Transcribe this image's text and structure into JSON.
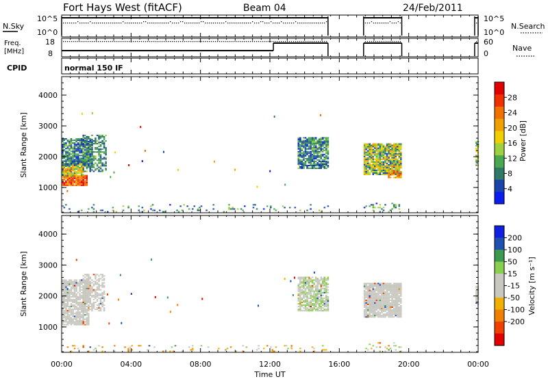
{
  "header": {
    "title": "Fort Hays West (fitACF)",
    "beam": "Beam 04",
    "date": "24/Feb/2011"
  },
  "time_axis": {
    "ticks": [
      "00:00",
      "04:00",
      "08:00",
      "12:00",
      "16:00",
      "20:00",
      "00:00"
    ],
    "tick_hours": [
      0,
      4,
      8,
      12,
      16,
      20,
      24
    ],
    "label": "Time UT",
    "range_hours": [
      0,
      24
    ]
  },
  "noise_panel": {
    "left_label": "N.Sky",
    "left_ticks": [
      "10^5",
      "10^0"
    ],
    "right_ticks": [
      "10^5",
      "10^0"
    ],
    "right_label": "N.Search"
  },
  "freq_panel": {
    "left_label_1": "Freq.",
    "left_label_2": "[MHz]",
    "left_ticks": [
      "18",
      "8"
    ],
    "right_ticks": [
      "60",
      "0"
    ],
    "right_label": "Nave"
  },
  "cpid": {
    "label": "CPID",
    "program": "normal 150 IF"
  },
  "chart_data": [
    {
      "type": "heatmap",
      "panel": "power",
      "ylabel": "Slant Range [km]",
      "yticks": [
        "1000",
        "2000",
        "3000",
        "4000"
      ],
      "ytick_values": [
        1000,
        2000,
        3000,
        4000
      ],
      "ylim": [
        180,
        4600
      ],
      "colorbar_label": "Power [dB]",
      "colorbar_ticks": [
        "4",
        "8",
        "12",
        "16",
        "20",
        "24",
        "28"
      ],
      "colorbar_tick_values": [
        4,
        8,
        12,
        16,
        20,
        24,
        28
      ],
      "colorbar_range": [
        0,
        32
      ],
      "colors": [
        "#0a1cf0",
        "#1a44aa",
        "#2f7a66",
        "#4aa850",
        "#9fd040",
        "#f0d000",
        "#f0a000",
        "#f07000",
        "#f03000",
        "#e00000"
      ],
      "clusters": [
        {
          "t": [
            0.0,
            1.5
          ],
          "r": [
            1050,
            1400
          ],
          "lvl": [
            20,
            32
          ],
          "density": 0.95
        },
        {
          "t": [
            0.0,
            1.3
          ],
          "r": [
            1350,
            1800
          ],
          "lvl": [
            8,
            24
          ],
          "density": 0.9
        },
        {
          "t": [
            0.0,
            1.8
          ],
          "r": [
            1700,
            2600
          ],
          "lvl": [
            2,
            14
          ],
          "density": 0.8
        },
        {
          "t": [
            1.2,
            2.6
          ],
          "r": [
            1500,
            2700
          ],
          "lvl": [
            4,
            14
          ],
          "density": 0.55
        },
        {
          "t": [
            13.6,
            15.3
          ],
          "r": [
            1600,
            2600
          ],
          "lvl": [
            2,
            14
          ],
          "density": 0.8
        },
        {
          "t": [
            17.4,
            19.6
          ],
          "r": [
            1400,
            2400
          ],
          "lvl": [
            4,
            22
          ],
          "density": 0.9
        },
        {
          "t": [
            18.8,
            19.6
          ],
          "r": [
            1300,
            1700
          ],
          "lvl": [
            14,
            26
          ],
          "density": 0.8
        },
        {
          "t": [
            23.85,
            24.0
          ],
          "r": [
            1700,
            2500
          ],
          "lvl": [
            8,
            20
          ],
          "density": 0.6
        },
        {
          "t": [
            0.0,
            15.3
          ],
          "r": [
            190,
            420
          ],
          "lvl": [
            2,
            16
          ],
          "density": 0.08
        },
        {
          "t": [
            17.4,
            19.6
          ],
          "r": [
            190,
            500
          ],
          "lvl": [
            2,
            16
          ],
          "density": 0.15
        }
      ]
    },
    {
      "type": "heatmap",
      "panel": "velocity",
      "ylabel": "Slant Range [km]",
      "yticks": [
        "1000",
        "2000",
        "3000",
        "4000"
      ],
      "ytick_values": [
        1000,
        2000,
        3000,
        4000
      ],
      "ylim": [
        180,
        4600
      ],
      "colorbar_label": "Velocity [m s^-1]",
      "colorbar_ticks": [
        "200",
        "100",
        "50",
        "15",
        "-15",
        "-50",
        "-100",
        "-200"
      ],
      "colorbar_tick_values": [
        200,
        100,
        50,
        15,
        -15,
        -50,
        -100,
        -200
      ],
      "colorbar_range": [
        -250,
        250
      ],
      "colors": [
        "#e00000",
        "#f04000",
        "#f08000",
        "#f0b000",
        "#c8c8c0",
        "#c8c8c0",
        "#8ad050",
        "#3a9a50",
        "#2050b0",
        "#1020e0"
      ],
      "clusters": [
        {
          "t": [
            0.0,
            1.6
          ],
          "r": [
            1050,
            2500
          ],
          "lvl": [
            -12,
            12
          ],
          "density": 0.85
        },
        {
          "t": [
            1.2,
            2.5
          ],
          "r": [
            1500,
            2700
          ],
          "lvl": [
            -12,
            12
          ],
          "density": 0.55
        },
        {
          "t": [
            13.6,
            15.3
          ],
          "r": [
            1500,
            2600
          ],
          "lvl": [
            -12,
            30
          ],
          "density": 0.8
        },
        {
          "t": [
            17.4,
            19.6
          ],
          "r": [
            1300,
            2400
          ],
          "lvl": [
            -12,
            12
          ],
          "density": 0.92
        },
        {
          "t": [
            23.85,
            24.0
          ],
          "r": [
            1700,
            2300
          ],
          "lvl": [
            -12,
            12
          ],
          "density": 0.6
        },
        {
          "t": [
            0.0,
            15.3
          ],
          "r": [
            190,
            380
          ],
          "lvl": [
            -90,
            40
          ],
          "density": 0.1
        },
        {
          "t": [
            17.4,
            19.6
          ],
          "r": [
            190,
            480
          ],
          "lvl": [
            -60,
            60
          ],
          "density": 0.15
        }
      ]
    }
  ]
}
